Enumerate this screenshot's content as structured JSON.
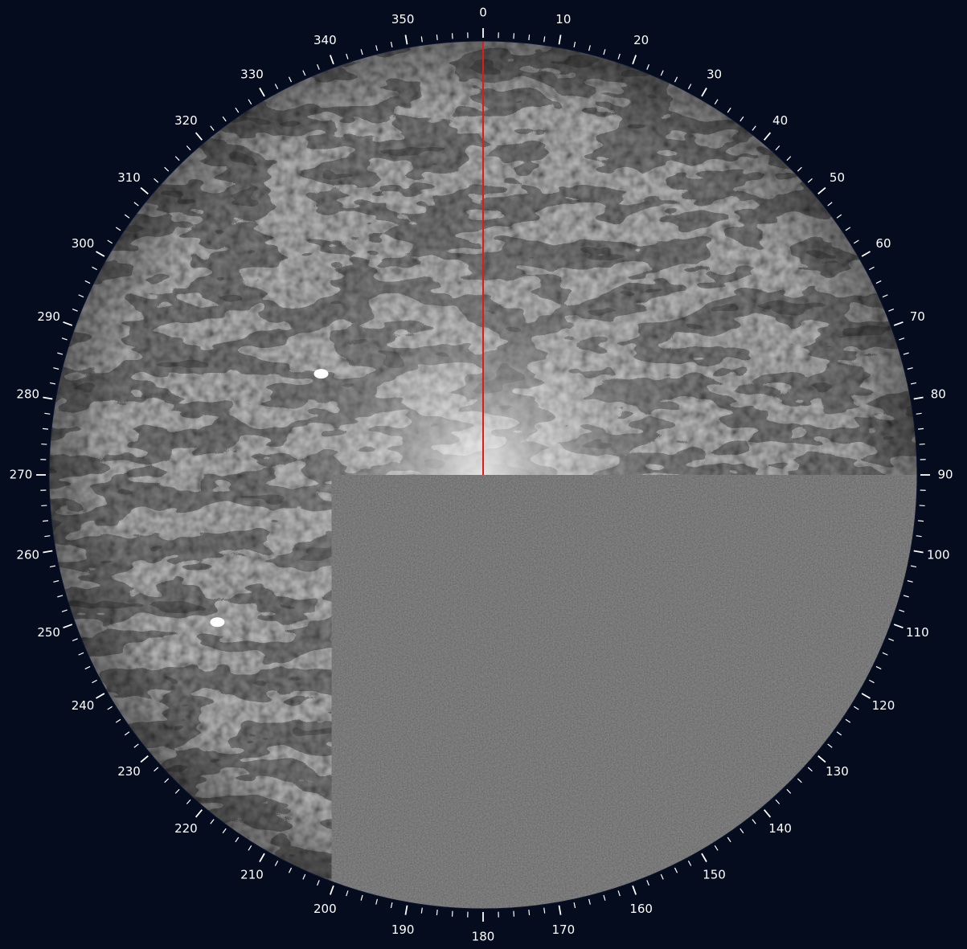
{
  "radar": {
    "heading_line_color": "#e01a1a",
    "background_color": "#040c1e",
    "bearing_labels": [
      "0",
      "10",
      "20",
      "30",
      "40",
      "50",
      "60",
      "70",
      "80",
      "90",
      "100",
      "110",
      "120",
      "130",
      "140",
      "150",
      "160",
      "170",
      "180",
      "190",
      "200",
      "210",
      "220",
      "230",
      "240",
      "250",
      "260",
      "270",
      "280",
      "290",
      "300",
      "310",
      "320",
      "330",
      "340",
      "350"
    ],
    "blind_sector": {
      "start_bearing": 100,
      "end_bearing": 200
    },
    "targets": [
      {
        "name": "target-echo",
        "bearing": 302,
        "range_fraction": 0.44
      },
      {
        "name": "target-echo",
        "bearing": 241,
        "range_fraction": 0.7
      }
    ]
  }
}
